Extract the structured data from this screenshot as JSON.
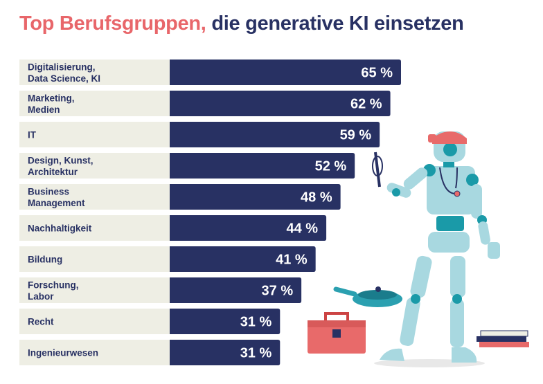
{
  "chart_data": {
    "type": "bar",
    "orientation": "horizontal",
    "title": {
      "highlight": "Top Berufsgruppen,",
      "rest": " die generative KI einsetzen"
    },
    "categories": [
      [
        "Digitalisierung,",
        "Data Science, KI"
      ],
      [
        "Marketing,",
        "Medien"
      ],
      [
        "IT"
      ],
      [
        "Design, Kunst,",
        "Architektur"
      ],
      [
        "Business",
        "Management"
      ],
      [
        "Nachhaltigkeit"
      ],
      [
        "Bildung"
      ],
      [
        "Forschung,",
        "Labor"
      ],
      [
        "Recht"
      ],
      [
        "Ingenieurwesen"
      ]
    ],
    "values": [
      65,
      62,
      59,
      52,
      48,
      44,
      41,
      37,
      31,
      31
    ],
    "value_suffix": " %",
    "xlim": [
      0,
      100
    ],
    "grid": false,
    "legend": "none",
    "colors": {
      "bar": "#283163",
      "label_bg": "#eeeee4",
      "value_text": "#ffffff",
      "label_text": "#283163",
      "title_highlight": "#e8666a",
      "title_rest": "#283163"
    }
  },
  "illustration": {
    "description_icon": "robot-doctor-icon"
  }
}
